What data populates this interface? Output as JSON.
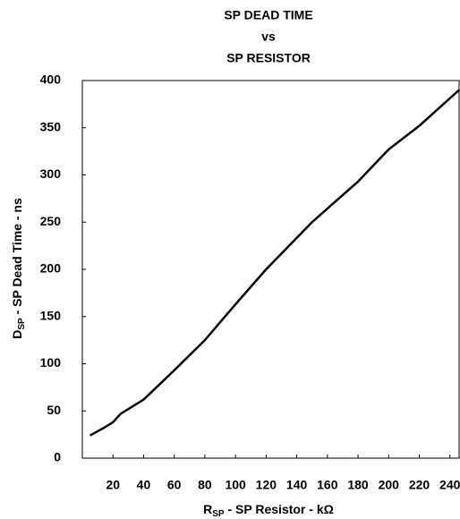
{
  "chart_data": {
    "type": "line",
    "title": [
      "SP DEAD TIME",
      "vs",
      "SP RESISTOR"
    ],
    "x_label": {
      "main": "R",
      "sub": "SP",
      "rest": " - SP Resistor - kΩ"
    },
    "y_label": {
      "main": "D",
      "sub": "SP",
      "rest": " - SP Dead Time - ns"
    },
    "x": [
      5,
      15,
      20,
      25,
      40,
      60,
      80,
      100,
      120,
      150,
      180,
      200,
      220,
      246
    ],
    "series": [
      {
        "name": "Dead Time",
        "color": "#000000",
        "values": [
          24,
          33,
          38,
          47,
          62,
          93,
          125,
          163,
          200,
          250,
          293,
          327,
          352,
          390
        ]
      }
    ],
    "xlim": [
      0,
      246
    ],
    "xticks": [
      20,
      40,
      60,
      80,
      100,
      120,
      140,
      160,
      180,
      200,
      220,
      240
    ],
    "ylim": [
      0,
      400
    ],
    "yticks": [
      0,
      50,
      100,
      150,
      200,
      250,
      300,
      350,
      400
    ],
    "grid": false
  }
}
